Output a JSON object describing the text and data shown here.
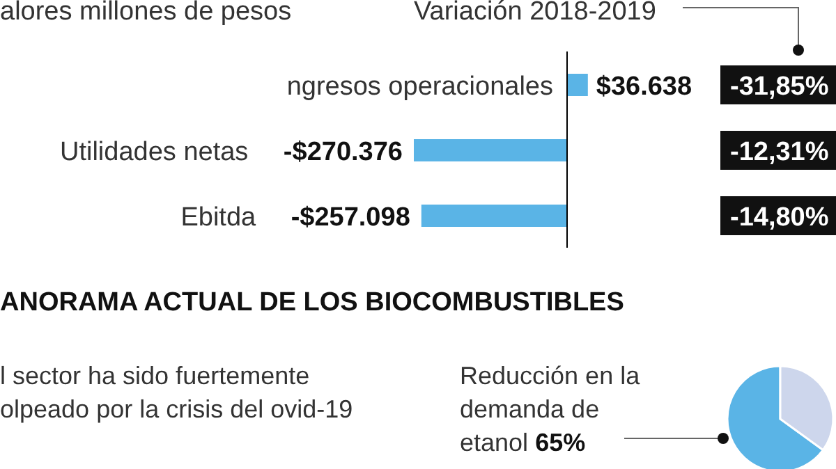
{
  "chart_data": [
    {
      "type": "bar",
      "orientation": "horizontal",
      "subtitle": "alores millones de pesos",
      "categories": [
        "ngresos operacionales",
        "Utilidades netas",
        "Ebitda"
      ],
      "values": [
        36638,
        -270376,
        -257098
      ],
      "value_labels": [
        "$36.638",
        "-$270.376",
        "-$257.098"
      ],
      "color": "#5ab4e6",
      "ref_lines": [
        {
          "axis": "x",
          "value": 0,
          "color": "#000000"
        }
      ],
      "annotations": [
        "Variación 2018-2019",
        "-31,85%",
        "-12,31%",
        "-14,80%"
      ]
    },
    {
      "type": "pie",
      "title": "ANORAMA ACTUAL DE LOS BIOCOMBUSTIBLES",
      "annotations": [
        "l sector ha sido fuertemente olpeado por la crisis del ovid-19"
      ],
      "categories": [
        "Reducción en la demanda de etanol",
        null
      ],
      "values": [
        65,
        35
      ],
      "colors": [
        "#5ab4e6",
        "#cdd6ec"
      ],
      "value_labels": [
        "65%",
        null
      ]
    }
  ]
}
